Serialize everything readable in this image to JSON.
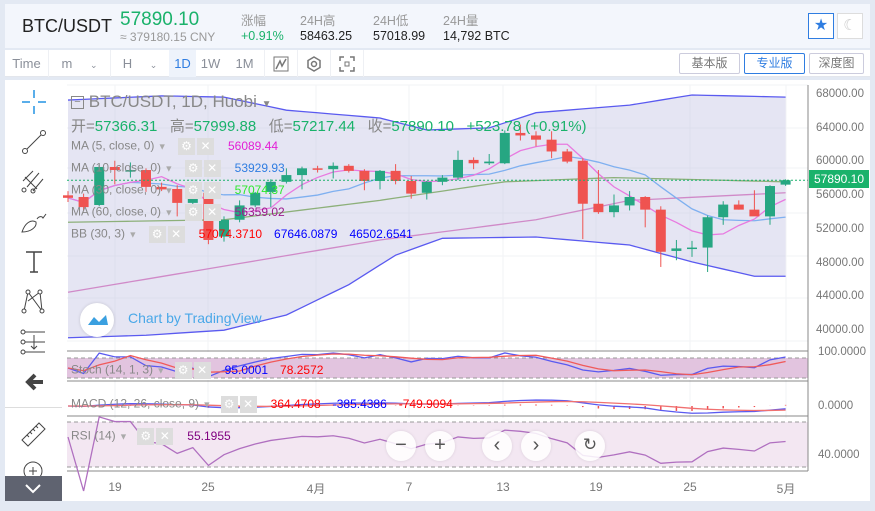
{
  "header": {
    "symbol": "BTC/USDT",
    "price": "57890.10",
    "price_cny": "≈ 379180.15 CNY",
    "stats": [
      {
        "label": "涨幅",
        "value": "+0.91%"
      },
      {
        "label": "24H高",
        "value": "58463.25"
      },
      {
        "label": "24H低",
        "value": "57018.99"
      },
      {
        "label": "24H量",
        "value": "14,792 BTC"
      }
    ],
    "favorite_icon": "star-icon",
    "theme_icon": "moon-icon"
  },
  "toolbar": {
    "time": "Time",
    "minute": "m",
    "hour": "H",
    "intervals": [
      "1D",
      "1W",
      "1M"
    ],
    "active_interval": "1D",
    "icons": [
      "indicator-icon",
      "settings-hexagon-icon",
      "fullscreen-icon"
    ],
    "versions": [
      "基本版",
      "专业版",
      "深度图"
    ],
    "active_version": "专业版"
  },
  "left_tools": [
    "crosshair-icon",
    "trend-line-icon",
    "pitchfork-icon",
    "brush-icon",
    "text-icon",
    "pattern-icon",
    "measure-lines-icon",
    "back-arrow-icon",
    "ruler-icon",
    "zoom-in-icon",
    "collapse-chevron-icon"
  ],
  "legend": {
    "title": "BTC/USDT, 1D, Huobi",
    "ohlc": {
      "open_label": "开=",
      "open": "57366.31",
      "high_label": "高=",
      "high": "57999.88",
      "low_label": "低=",
      "low": "57217.44",
      "close_label": "收=",
      "close": "57890.10",
      "change": "+523.78 (+0.91%)"
    },
    "indicators": [
      {
        "name": "MA (5, close, 0)",
        "values": [
          "56089.44"
        ],
        "colors": [
          "#e31fd6"
        ]
      },
      {
        "name": "MA (10, close, 0)",
        "values": [
          "53929.93"
        ],
        "colors": [
          "#2f7de1"
        ]
      },
      {
        "name": "MA (30, close, 0)",
        "values": [
          "57074.37"
        ],
        "colors": [
          "#2ee82e"
        ]
      },
      {
        "name": "MA (60, close, 0)",
        "values": [
          "56359.02"
        ],
        "colors": [
          "#9c1a8c"
        ]
      },
      {
        "name": "BB (30, 3)",
        "values": [
          "57074.3710",
          "67646.0879",
          "46502.6541"
        ],
        "colors": [
          "#ff0000",
          "#0000ff",
          "#0000ff"
        ]
      }
    ],
    "stoch": {
      "name": "Stoch (14, 1, 3)",
      "values": [
        "95.0001",
        "78.2572"
      ]
    },
    "macd": {
      "name": "MACD (12, 26, close, 9)",
      "values": [
        "364.4708",
        "-385.4386",
        "-749.9094"
      ]
    },
    "rsi": {
      "name": "RSI (14)",
      "values": [
        "55.1955"
      ]
    }
  },
  "watermark": "Chart by TradingView",
  "price_axis": [
    "68000.00",
    "64000.00",
    "60000.00",
    "56000.00",
    "52000.00",
    "48000.00",
    "44000.00",
    "40000.00"
  ],
  "last_price_tag": "57890.10",
  "stoch_axis": "100.0000",
  "macd_axis": "0.0000",
  "rsi_axis": "40.0000",
  "time_axis": [
    "19",
    "25",
    "4月",
    "7",
    "13",
    "19",
    "25",
    "5月"
  ],
  "nav_buttons": [
    "zoom-out",
    "zoom-in",
    "scroll-left",
    "scroll-right",
    "reset"
  ],
  "colors": {
    "up": "#26a682",
    "down": "#ef5350",
    "accent": "#2f7de1",
    "price_green": "#1ab26b"
  },
  "chart_data": {
    "type": "candlestick",
    "title": "BTC/USDT, 1D, Huobi",
    "ylim": [
      38000,
      69500
    ],
    "candles": [
      [
        56100,
        56600,
        55300,
        55800
      ],
      [
        55900,
        56300,
        54300,
        54700
      ],
      [
        54950,
        59700,
        54800,
        59460
      ],
      [
        59460,
        60200,
        57400,
        59100
      ],
      [
        58900,
        60000,
        58200,
        59100
      ],
      [
        59100,
        59300,
        56500,
        57100
      ],
      [
        57100,
        57600,
        56600,
        56800
      ],
      [
        56850,
        57300,
        53600,
        55200
      ],
      [
        55200,
        56800,
        54000,
        56100
      ],
      [
        56400,
        56500,
        50300,
        50800
      ],
      [
        51200,
        53600,
        50600,
        53200
      ],
      [
        53200,
        55500,
        52900,
        54900
      ],
      [
        54900,
        56500,
        54700,
        56400
      ],
      [
        56500,
        58000,
        54700,
        57700
      ],
      [
        57700,
        59300,
        57500,
        58500
      ],
      [
        58500,
        59500,
        56800,
        59300
      ],
      [
        59300,
        59600,
        58800,
        59200
      ],
      [
        59200,
        60000,
        58100,
        59600
      ],
      [
        59600,
        59800,
        58800,
        59000
      ],
      [
        59000,
        59200,
        56700,
        57800
      ],
      [
        57800,
        59100,
        56800,
        59000
      ],
      [
        59000,
        59800,
        57400,
        57800
      ],
      [
        57800,
        58400,
        55700,
        56300
      ],
      [
        56400,
        57800,
        55600,
        57700
      ],
      [
        57700,
        58500,
        57300,
        58200
      ],
      [
        58200,
        61400,
        57900,
        60300
      ],
      [
        60300,
        60600,
        59200,
        59900
      ],
      [
        59900,
        61000,
        59700,
        60100
      ],
      [
        59900,
        63800,
        59800,
        63500
      ],
      [
        63500,
        64500,
        62600,
        63200
      ],
      [
        63200,
        63700,
        61900,
        62700
      ],
      [
        62700,
        63700,
        60500,
        61300
      ],
      [
        61300,
        61600,
        59900,
        60100
      ],
      [
        60200,
        60500,
        50900,
        55100
      ],
      [
        55100,
        59100,
        53900,
        54100
      ],
      [
        54100,
        56200,
        53500,
        54900
      ],
      [
        54900,
        56600,
        54300,
        55900
      ],
      [
        55900,
        56000,
        52300,
        54400
      ],
      [
        54400,
        54800,
        47600,
        49400
      ],
      [
        49500,
        50800,
        48400,
        49800
      ],
      [
        49800,
        50700,
        48800,
        49900
      ],
      [
        49900,
        53700,
        47000,
        53500
      ],
      [
        53500,
        55400,
        52600,
        55000
      ],
      [
        55000,
        55500,
        54400,
        54400
      ],
      [
        54400,
        56700,
        53700,
        53600
      ],
      [
        53600,
        57300,
        52600,
        57200
      ],
      [
        57366,
        57999,
        57217,
        57890
      ]
    ],
    "bb_upper": [
      [
        0,
        67400
      ],
      [
        6,
        67900
      ],
      [
        10,
        67750
      ],
      [
        14,
        66200
      ],
      [
        20,
        65270
      ],
      [
        23,
        63850
      ],
      [
        27,
        64100
      ],
      [
        30,
        65900
      ],
      [
        36,
        66800
      ],
      [
        40,
        68000
      ],
      [
        46,
        67750
      ]
    ],
    "bb_lower": [
      [
        0,
        39200
      ],
      [
        5,
        39500
      ],
      [
        10,
        40100
      ],
      [
        14,
        41900
      ],
      [
        18,
        45500
      ],
      [
        21,
        49000
      ],
      [
        24,
        51000
      ],
      [
        30,
        51150
      ],
      [
        36,
        50200
      ],
      [
        40,
        48200
      ],
      [
        44,
        46500
      ],
      [
        46,
        46500
      ]
    ],
    "ma30": [
      [
        0,
        52900
      ],
      [
        10,
        53200
      ],
      [
        20,
        55500
      ],
      [
        28,
        57700
      ],
      [
        35,
        58200
      ],
      [
        46,
        57700
      ]
    ],
    "ma60": [
      [
        0,
        44600
      ],
      [
        20,
        50800
      ],
      [
        30,
        53200
      ],
      [
        36,
        55500
      ],
      [
        46,
        56400
      ]
    ]
  }
}
